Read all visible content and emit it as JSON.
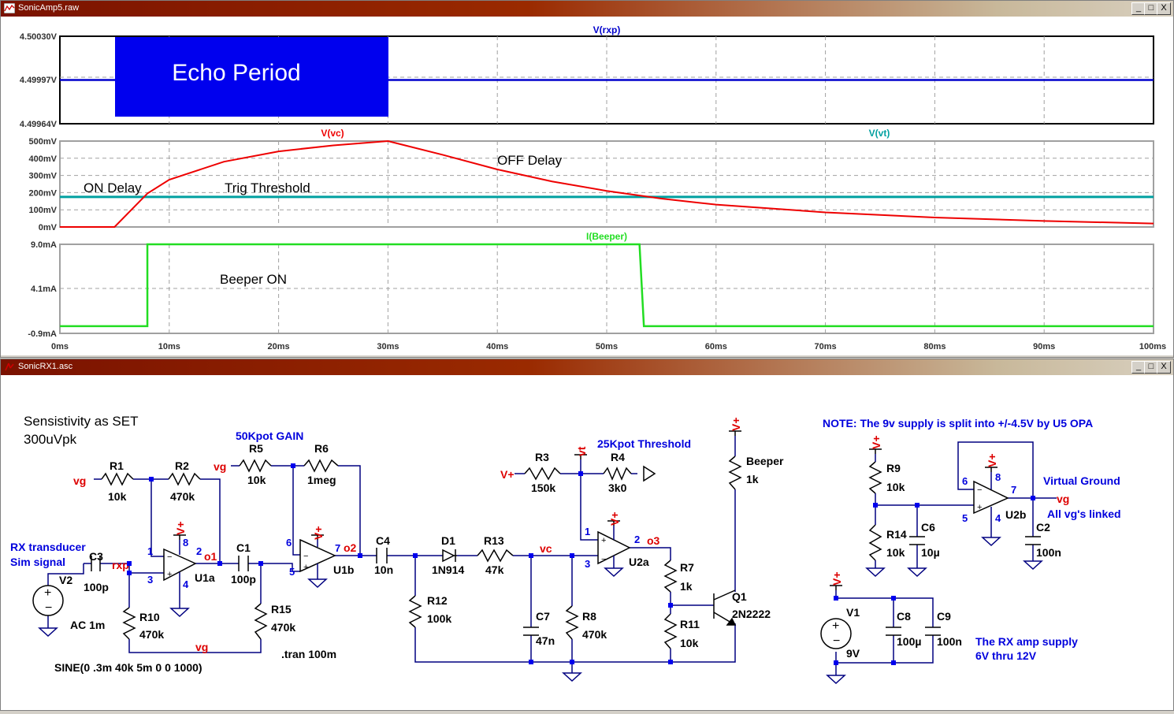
{
  "waveform_window": {
    "title": "SonicAmp5.raw",
    "controls": {
      "minimize": "_",
      "maximize": "□",
      "close": "X"
    },
    "panes": [
      {
        "trace": "V(rxp)",
        "trace_color": "#0000cc",
        "y_ticks": [
          "4.50030V",
          "4.49997V",
          "4.49964V"
        ]
      },
      {
        "traces": [
          {
            "name": "V(vc)",
            "color": "#ee0000"
          },
          {
            "name": "V(vt)",
            "color": "#00a0a0"
          }
        ],
        "y_ticks": [
          "500mV",
          "400mV",
          "300mV",
          "200mV",
          "100mV",
          "0mV"
        ]
      },
      {
        "trace": "I(Beeper)",
        "trace_color": "#22dd22",
        "y_ticks": [
          "9.0mA",
          "4.1mA",
          "-0.9mA"
        ]
      }
    ],
    "x_ticks": [
      "0ms",
      "10ms",
      "20ms",
      "30ms",
      "40ms",
      "50ms",
      "60ms",
      "70ms",
      "80ms",
      "90ms",
      "100ms"
    ],
    "annotations": {
      "echo_period": "Echo Period",
      "on_delay": "ON Delay",
      "trig_threshold": "Trig Threshold",
      "off_delay": "OFF Delay",
      "beeper_on": "Beeper ON"
    }
  },
  "chart_data": [
    {
      "type": "line",
      "series": [
        {
          "name": "V(rxp)",
          "x": [
            0,
            5,
            30,
            100
          ],
          "y": [
            4.49997,
            4.49997,
            4.49997,
            4.49997
          ]
        }
      ],
      "ylim": [
        4.49964,
        4.5003
      ],
      "xlim": [
        0,
        100
      ]
    },
    {
      "type": "line",
      "series": [
        {
          "name": "V(vc)",
          "x": [
            0,
            5,
            8,
            10,
            15,
            20,
            25,
            30,
            35,
            40,
            45,
            50,
            55,
            60,
            70,
            80,
            90,
            100
          ],
          "y": [
            0,
            0,
            195,
            275,
            380,
            440,
            475,
            500,
            420,
            335,
            265,
            210,
            165,
            130,
            85,
            55,
            35,
            20
          ]
        },
        {
          "name": "V(vt)",
          "x": [
            0,
            100
          ],
          "y": [
            175,
            175
          ]
        }
      ],
      "ylim": [
        0,
        500
      ],
      "xlim": [
        0,
        100
      ]
    },
    {
      "type": "line",
      "series": [
        {
          "name": "I(Beeper)",
          "x": [
            0,
            8,
            8,
            53,
            53.4,
            100
          ],
          "y": [
            -0.1,
            -0.1,
            9.0,
            9.0,
            -0.1,
            -0.1
          ]
        }
      ],
      "ylim": [
        -0.9,
        9.0
      ],
      "xlim": [
        0,
        100
      ]
    }
  ],
  "schematic_window": {
    "title": "SonicRX1.asc",
    "controls": {
      "minimize": "_",
      "maximize": "□",
      "close": "X"
    },
    "texts": {
      "sensitivity1": "Sensistivity as SET",
      "sensitivity2": "300uVpk",
      "gain_note": "50Kpot GAIN",
      "threshold_note": "25Kpot Threshold",
      "note": "NOTE: The 9v supply is split into +/-4.5V by U5 OPA",
      "rx_transducer": "RX transducer",
      "sim_signal": "Sim signal",
      "virtual_ground": "Virtual Ground",
      "all_vg": "All vg's linked",
      "rx_supply1": "The RX amp supply",
      "rx_supply2": "6V thru 12V",
      "ac": "AC 1m",
      "sine": "SINE(0 .3m 40k 5m 0 0 1000)",
      "tran": ".tran 100m"
    },
    "components": {
      "R1": "10k",
      "R2": "470k",
      "R5": "10k",
      "R6": "1meg",
      "R3": "150k",
      "R4": "3k0",
      "R9": "10k",
      "R14": "10k",
      "R10": "470k",
      "R15": "470k",
      "R12": "100k",
      "R13": "47k",
      "R8": "470k",
      "R7": "1k",
      "R11": "10k",
      "Beeper": "1k",
      "C3": "100p",
      "C1": "100p",
      "C4": "10n",
      "C7": "47n",
      "C6": "10µ",
      "C2": "100n",
      "C8": "100µ",
      "C9": "100n",
      "D1": "1N914",
      "Q1": "2N2222",
      "V1": "9V"
    },
    "nets": {
      "vg": "vg",
      "rxp": "rxp",
      "o1": "o1",
      "o2": "o2",
      "o3": "o3",
      "vc": "vc",
      "vt": "vt",
      "vplus": "V+"
    },
    "labels": [
      "U1a",
      "U1b",
      "U2a",
      "U2b",
      "V2",
      "V1",
      "Q1",
      "D1",
      "Beeper"
    ],
    "pins": {
      "u1a": [
        "1",
        "2",
        "3",
        "4",
        "8"
      ],
      "u1b": [
        "5",
        "6",
        "7"
      ],
      "u2a": [
        "1",
        "2",
        "3"
      ],
      "u2b": [
        "4",
        "5",
        "6",
        "7",
        "8"
      ]
    }
  }
}
